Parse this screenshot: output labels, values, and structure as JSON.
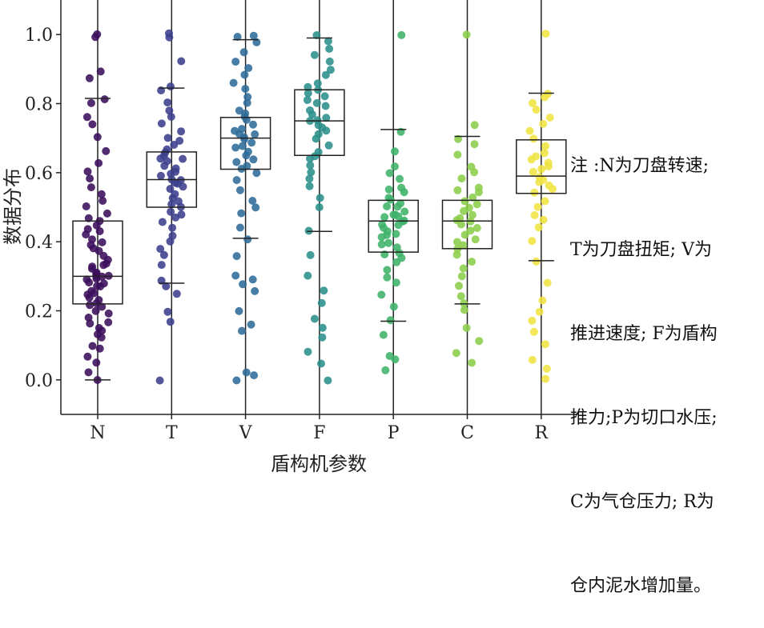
{
  "chart_data": {
    "type": "box",
    "title": "",
    "xlabel": "盾构机参数",
    "ylabel": "数据分布",
    "ylim": [
      -0.1,
      1.1
    ],
    "yticks": [
      0.0,
      0.2,
      0.4,
      0.6,
      0.8,
      1.0
    ],
    "ytick_labels": [
      "0.0",
      "0.2",
      "0.4",
      "0.6",
      "0.8",
      "1.0"
    ],
    "categories": [
      "N",
      "T",
      "V",
      "F",
      "P",
      "C",
      "R"
    ],
    "colors": [
      "#3b0f5c",
      "#3b3f8c",
      "#2f6c9a",
      "#2b8f8c",
      "#3db36a",
      "#8cce4a",
      "#f0e442"
    ],
    "grid": false,
    "series": [
      {
        "q1": 0.22,
        "median": 0.3,
        "q3": 0.46,
        "whisker_low": 0.0,
        "whisker_high": 0.815,
        "points": [
          0.0,
          0.02,
          0.05,
          0.07,
          0.09,
          0.1,
          0.12,
          0.13,
          0.14,
          0.15,
          0.16,
          0.17,
          0.18,
          0.19,
          0.2,
          0.21,
          0.22,
          0.22,
          0.23,
          0.24,
          0.25,
          0.25,
          0.26,
          0.27,
          0.27,
          0.28,
          0.28,
          0.29,
          0.29,
          0.3,
          0.3,
          0.3,
          0.31,
          0.31,
          0.32,
          0.33,
          0.33,
          0.34,
          0.35,
          0.36,
          0.37,
          0.38,
          0.39,
          0.4,
          0.41,
          0.42,
          0.43,
          0.44,
          0.45,
          0.46,
          0.47,
          0.48,
          0.5,
          0.52,
          0.54,
          0.56,
          0.58,
          0.6,
          0.63,
          0.66,
          0.7,
          0.74,
          0.76,
          0.8,
          0.81,
          0.87,
          0.89,
          0.99,
          1.0
        ]
      },
      {
        "q1": 0.5,
        "median": 0.58,
        "q3": 0.66,
        "whisker_low": 0.28,
        "whisker_high": 0.845,
        "points": [
          0.0,
          0.17,
          0.2,
          0.25,
          0.27,
          0.29,
          0.33,
          0.36,
          0.38,
          0.4,
          0.42,
          0.44,
          0.46,
          0.47,
          0.48,
          0.49,
          0.5,
          0.51,
          0.52,
          0.53,
          0.54,
          0.55,
          0.56,
          0.57,
          0.57,
          0.58,
          0.58,
          0.59,
          0.6,
          0.6,
          0.61,
          0.62,
          0.63,
          0.64,
          0.64,
          0.65,
          0.66,
          0.67,
          0.68,
          0.69,
          0.7,
          0.72,
          0.74,
          0.76,
          0.78,
          0.8,
          0.84,
          0.85,
          0.92,
          0.99,
          1.0
        ]
      },
      {
        "q1": 0.61,
        "median": 0.7,
        "q3": 0.76,
        "whisker_low": 0.41,
        "whisker_high": 0.985,
        "points": [
          0.0,
          0.01,
          0.02,
          0.14,
          0.16,
          0.2,
          0.26,
          0.28,
          0.29,
          0.3,
          0.36,
          0.41,
          0.44,
          0.48,
          0.5,
          0.52,
          0.55,
          0.58,
          0.6,
          0.61,
          0.62,
          0.63,
          0.64,
          0.65,
          0.66,
          0.67,
          0.68,
          0.69,
          0.7,
          0.7,
          0.71,
          0.71,
          0.72,
          0.73,
          0.74,
          0.75,
          0.76,
          0.77,
          0.78,
          0.8,
          0.82,
          0.84,
          0.86,
          0.88,
          0.9,
          0.92,
          0.95,
          0.98,
          0.99,
          1.0
        ]
      },
      {
        "q1": 0.65,
        "median": 0.75,
        "q3": 0.84,
        "whisker_low": 0.43,
        "whisker_high": 0.99,
        "points": [
          0.0,
          0.05,
          0.08,
          0.12,
          0.15,
          0.18,
          0.22,
          0.26,
          0.3,
          0.36,
          0.43,
          0.5,
          0.53,
          0.56,
          0.58,
          0.6,
          0.62,
          0.64,
          0.65,
          0.66,
          0.68,
          0.7,
          0.71,
          0.72,
          0.73,
          0.74,
          0.75,
          0.75,
          0.76,
          0.77,
          0.78,
          0.79,
          0.8,
          0.81,
          0.82,
          0.83,
          0.84,
          0.85,
          0.86,
          0.88,
          0.9,
          0.92,
          0.94,
          0.96,
          0.98,
          1.0
        ]
      },
      {
        "q1": 0.37,
        "median": 0.46,
        "q3": 0.52,
        "whisker_low": 0.17,
        "whisker_high": 0.725,
        "points": [
          0.03,
          0.06,
          0.07,
          0.13,
          0.17,
          0.21,
          0.25,
          0.28,
          0.3,
          0.32,
          0.34,
          0.35,
          0.36,
          0.37,
          0.38,
          0.39,
          0.4,
          0.41,
          0.42,
          0.42,
          0.43,
          0.44,
          0.45,
          0.45,
          0.46,
          0.46,
          0.47,
          0.47,
          0.48,
          0.48,
          0.49,
          0.5,
          0.5,
          0.51,
          0.52,
          0.53,
          0.54,
          0.55,
          0.56,
          0.58,
          0.6,
          0.62,
          0.66,
          0.72,
          1.0
        ]
      },
      {
        "q1": 0.38,
        "median": 0.46,
        "q3": 0.52,
        "whisker_low": 0.22,
        "whisker_high": 0.705,
        "points": [
          0.05,
          0.08,
          0.11,
          0.15,
          0.2,
          0.22,
          0.24,
          0.27,
          0.3,
          0.32,
          0.34,
          0.36,
          0.38,
          0.39,
          0.4,
          0.41,
          0.42,
          0.43,
          0.44,
          0.45,
          0.46,
          0.46,
          0.47,
          0.48,
          0.49,
          0.5,
          0.51,
          0.52,
          0.53,
          0.54,
          0.55,
          0.56,
          0.58,
          0.6,
          0.62,
          0.65,
          0.68,
          0.7,
          0.74,
          1.0
        ]
      },
      {
        "q1": 0.54,
        "median": 0.59,
        "q3": 0.695,
        "whisker_low": 0.345,
        "whisker_high": 0.83,
        "points": [
          0.0,
          0.03,
          0.06,
          0.1,
          0.14,
          0.17,
          0.2,
          0.23,
          0.28,
          0.34,
          0.4,
          0.44,
          0.46,
          0.48,
          0.5,
          0.52,
          0.54,
          0.55,
          0.56,
          0.57,
          0.58,
          0.59,
          0.6,
          0.61,
          0.62,
          0.63,
          0.64,
          0.65,
          0.66,
          0.68,
          0.7,
          0.72,
          0.74,
          0.76,
          0.78,
          0.8,
          0.82,
          0.83,
          1.0
        ]
      }
    ]
  },
  "note": {
    "lines": [
      "注 :N为刀盘转速;",
      "T为刀盘扭矩; V为",
      "推进速度; F为盾构",
      "推力;P为切口水压;",
      "C为气仓压力; R为",
      "仓内泥水增加量。"
    ]
  }
}
